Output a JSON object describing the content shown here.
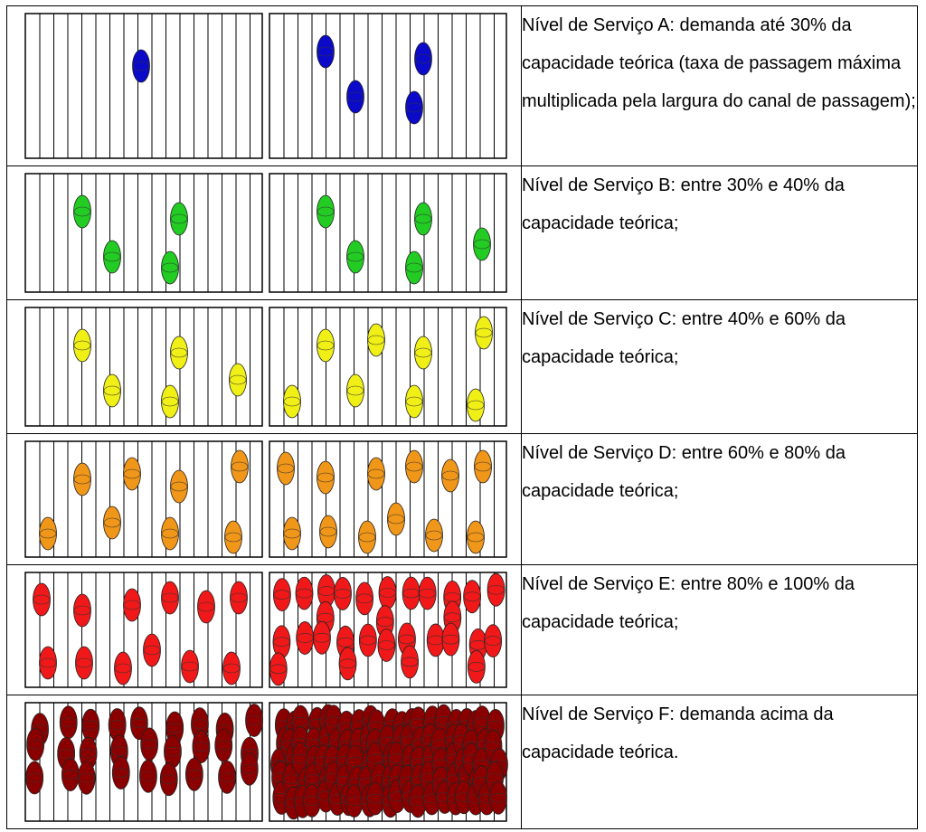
{
  "levels": [
    {
      "id": "A",
      "color": "#0a0ac8",
      "text": "Nível de Serviço A: demanda até 30% da capacidade teórica (taxa de passagem máxima multiplicada pela largura do canal de passagem);"
    },
    {
      "id": "B",
      "color": "#22cc22",
      "text": "Nível de Serviço B: entre 30% e 40% da capacidade teórica;"
    },
    {
      "id": "C",
      "color": "#f0f016",
      "text": "Nível de Serviço C: entre 40% e 60% da capacidade teórica;"
    },
    {
      "id": "D",
      "color": "#f09618",
      "text": "Nível de Serviço D: entre 60% e 80% da capacidade teórica;"
    },
    {
      "id": "E",
      "color": "#f01818",
      "text": "Nível de Serviço E: entre 80% e 100% da capacidade teórica;"
    },
    {
      "id": "F",
      "color": "#8a0000",
      "text": "Nível de Serviço F: demanda acima da capacidade teórica."
    }
  ]
}
